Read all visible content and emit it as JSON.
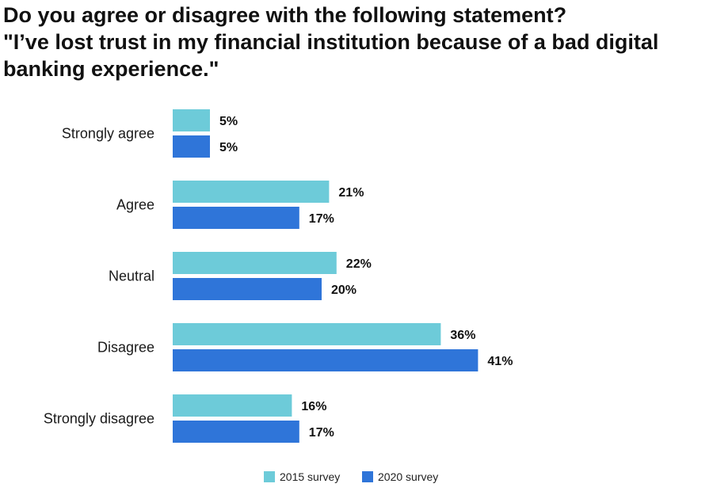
{
  "chart_data": {
    "type": "bar",
    "orientation": "horizontal",
    "title_lines": [
      "Do you agree or disagree with the following statement?",
      "\"I’ve lost trust in my financial institution because of a bad digital",
      "banking experience.\""
    ],
    "categories": [
      "Strongly agree",
      "Agree",
      "Neutral",
      "Disagree",
      "Strongly disagree"
    ],
    "series": [
      {
        "name": "2015 survey",
        "color": "#6dcbd9",
        "values": [
          5,
          21,
          22,
          36,
          16
        ]
      },
      {
        "name": "2020 survey",
        "color": "#2f75d9",
        "values": [
          5,
          17,
          20,
          41,
          17
        ]
      }
    ],
    "value_suffix": "%",
    "xlim": [
      0,
      45
    ],
    "grid": false,
    "legend_position": "bottom-center"
  }
}
